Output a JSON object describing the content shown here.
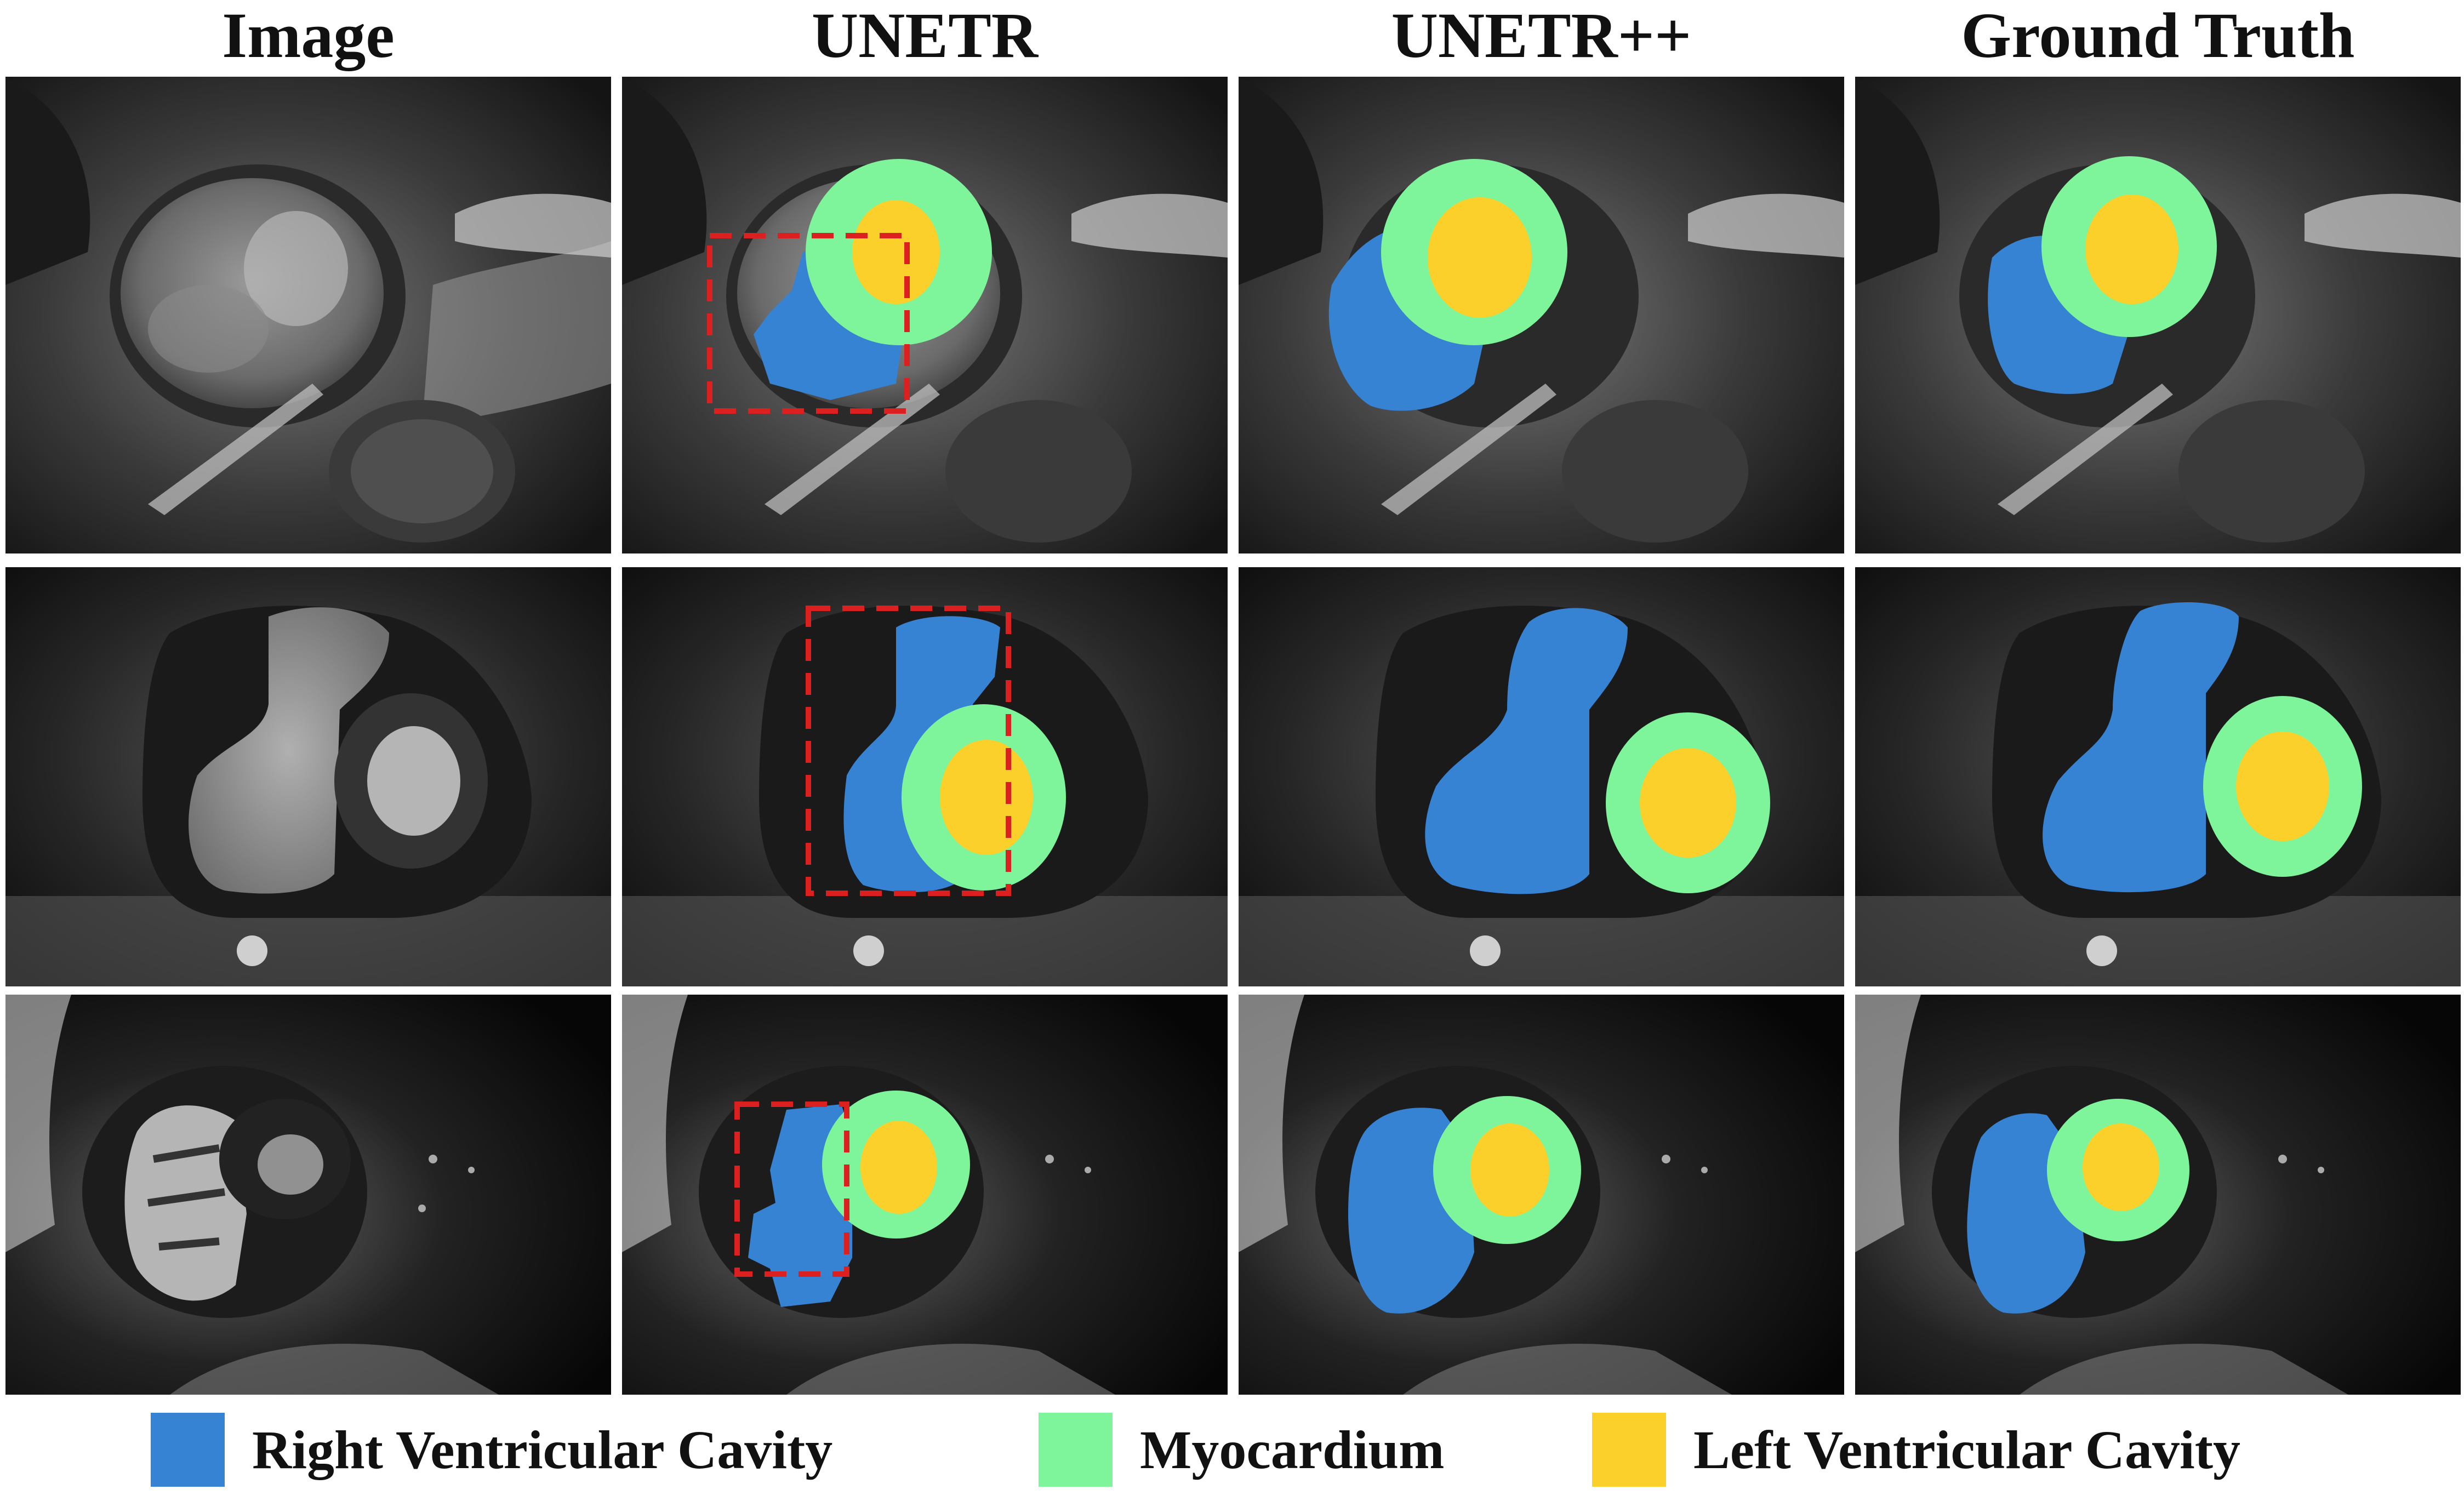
{
  "columns": {
    "image": "Image",
    "unetr": "UNETR",
    "unetrpp": "UNETR++",
    "ground_truth": "Ground Truth"
  },
  "legend": {
    "rv": {
      "label": "Right Ventricular Cavity",
      "color": "#3682d3"
    },
    "myo": {
      "label": "Myocardium",
      "color": "#7ef59a"
    },
    "lv": {
      "label": "Left Ventricular Cavity",
      "color": "#fcd02a"
    }
  },
  "colors": {
    "error_box": "#dc2020"
  }
}
